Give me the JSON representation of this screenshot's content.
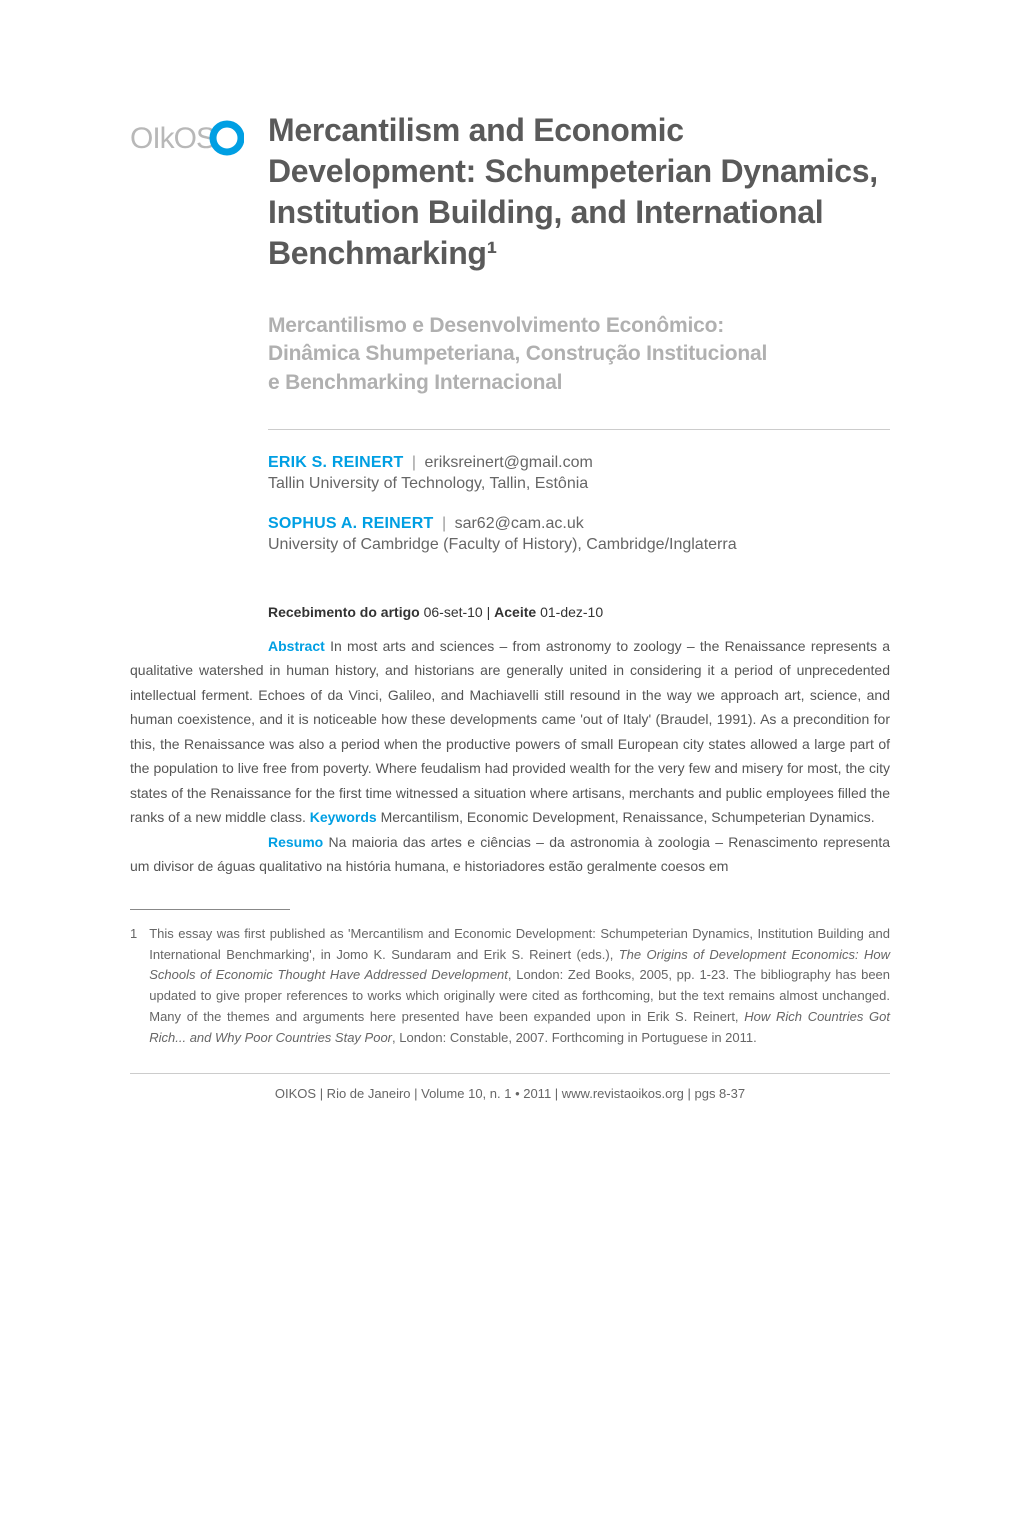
{
  "colors": {
    "accent": "#009fe3",
    "title_gray": "#5a5a5a",
    "subtitle_gray": "#b0b0b0",
    "body_gray": "#555555",
    "footnote_gray": "#666666",
    "divider": "#cccccc",
    "footnote_rule": "#888888",
    "background": "#ffffff"
  },
  "logo": {
    "text": "OIkOS",
    "ring_color": "#009fe3",
    "text_color": "#b8b8b8"
  },
  "title": {
    "text": "Mercantilism and Economic Development: Schumpeterian Dynamics, Institution Building, and International Benchmarking¹",
    "fontsize": 32,
    "fontweight": 700
  },
  "subtitle": {
    "line1": "Mercantilismo e Desenvolvimento Econômico:",
    "line2": "Dinâmica Shumpeteriana, Construção Institucional",
    "line3": "e Benchmarking Internacional",
    "fontsize": 21
  },
  "authors": [
    {
      "name": "ERIK S. REINERT",
      "email": "eriksreinert@gmail.com",
      "affil": "Tallin University of Technology, Tallin, Estônia"
    },
    {
      "name": "SOPHUS A. REINERT",
      "email": "sar62@cam.ac.uk",
      "affil": "University of Cambridge (Faculty of History), Cambridge/Inglaterra"
    }
  ],
  "dates": {
    "received_label": "Recebimento do artigo",
    "received_value": "06-set-10",
    "accepted_label": "Aceite",
    "accepted_value": "01-dez-10"
  },
  "abstract": {
    "label": "Abstract",
    "text": "In most arts and sciences – from astronomy to zoology – the Renaissance represents a qualitative watershed in human history, and historians are generally united in considering it a period of unprecedented intellectual ferment. Echoes of da Vinci, Galileo, and Machiavelli still resound in the way we approach art, science, and human coexistence, and it is noticeable how these developments came 'out of Italy' (Braudel, 1991). As a precondition for this, the Renaissance was also a period when the productive powers of small European city states allowed a large part of the population to live free from poverty. Where feudalism had provided wealth for the very few and misery for most, the city states of the Renaissance for the first time witnessed a situation where artisans, merchants and public employees filled the ranks of a new middle class.",
    "keywords_label": "Keywords",
    "keywords_text": "Mercantilism, Economic Development, Renaissance, Schumpeterian Dynamics."
  },
  "resumo": {
    "label": "Resumo",
    "text": "Na maioria das artes e ciências – da astronomia à zoologia – Renascimento representa um divisor de águas qualitativo na história humana, e historiadores estão geralmente coesos em"
  },
  "footnote": {
    "num": "1",
    "pre": "This essay was first published as 'Mercantilism and Economic Development: Schumpeterian Dynamics, Institution Building and International Benchmarking', in Jomo K. Sundaram and Erik S. Reinert (eds.), ",
    "italic1": "The Origins of Development Economics: How Schools of Economic Thought Have Addressed Development",
    "mid": ", London: Zed Books, 2005, pp. 1-23. The bibliography has been updated to give proper references to works which originally were cited as forthcoming, but the text remains almost unchanged. Many of the themes and arguments here presented have been expanded upon in Erik S. Reinert, ",
    "italic2": "How Rich Countries Got Rich... and Why Poor Countries Stay Poor",
    "post": ", London: Constable, 2007. Forthcoming in Portuguese in 2011."
  },
  "footer": {
    "text": "OIKOS | Rio de Janeiro | Volume 10, n. 1 • 2011 | www.revistaoikos.org | pgs 8-37"
  },
  "typography": {
    "body_fontsize": 14,
    "body_lineheight": 1.75,
    "author_fontsize": 16,
    "footnote_fontsize": 13
  }
}
